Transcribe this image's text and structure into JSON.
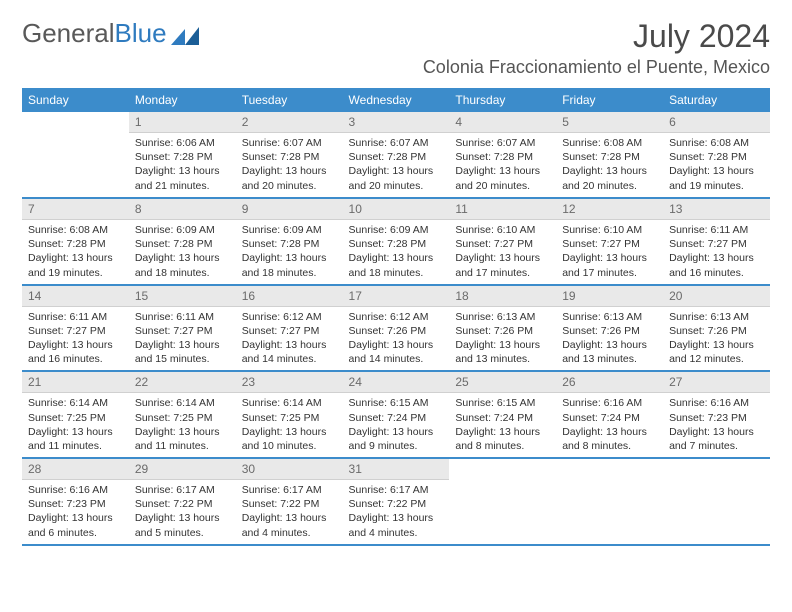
{
  "brand": {
    "part1": "General",
    "part2": "Blue"
  },
  "title": "July 2024",
  "location": "Colonia Fraccionamiento el Puente, Mexico",
  "colors": {
    "headerBar": "#3c8ccb",
    "headerText": "#ffffff",
    "dayNumBg": "#e9e9e9",
    "dayNumText": "#6b6b6b",
    "bodyText": "#333333",
    "brandGray": "#595959",
    "brandBlue": "#2f7bbf",
    "rowBorder": "#3c8ccb"
  },
  "dayHeaders": [
    "Sunday",
    "Monday",
    "Tuesday",
    "Wednesday",
    "Thursday",
    "Friday",
    "Saturday"
  ],
  "weeks": [
    [
      null,
      {
        "n": "1",
        "sunrise": "6:06 AM",
        "sunset": "7:28 PM",
        "daylight": "13 hours and 21 minutes."
      },
      {
        "n": "2",
        "sunrise": "6:07 AM",
        "sunset": "7:28 PM",
        "daylight": "13 hours and 20 minutes."
      },
      {
        "n": "3",
        "sunrise": "6:07 AM",
        "sunset": "7:28 PM",
        "daylight": "13 hours and 20 minutes."
      },
      {
        "n": "4",
        "sunrise": "6:07 AM",
        "sunset": "7:28 PM",
        "daylight": "13 hours and 20 minutes."
      },
      {
        "n": "5",
        "sunrise": "6:08 AM",
        "sunset": "7:28 PM",
        "daylight": "13 hours and 20 minutes."
      },
      {
        "n": "6",
        "sunrise": "6:08 AM",
        "sunset": "7:28 PM",
        "daylight": "13 hours and 19 minutes."
      }
    ],
    [
      {
        "n": "7",
        "sunrise": "6:08 AM",
        "sunset": "7:28 PM",
        "daylight": "13 hours and 19 minutes."
      },
      {
        "n": "8",
        "sunrise": "6:09 AM",
        "sunset": "7:28 PM",
        "daylight": "13 hours and 18 minutes."
      },
      {
        "n": "9",
        "sunrise": "6:09 AM",
        "sunset": "7:28 PM",
        "daylight": "13 hours and 18 minutes."
      },
      {
        "n": "10",
        "sunrise": "6:09 AM",
        "sunset": "7:28 PM",
        "daylight": "13 hours and 18 minutes."
      },
      {
        "n": "11",
        "sunrise": "6:10 AM",
        "sunset": "7:27 PM",
        "daylight": "13 hours and 17 minutes."
      },
      {
        "n": "12",
        "sunrise": "6:10 AM",
        "sunset": "7:27 PM",
        "daylight": "13 hours and 17 minutes."
      },
      {
        "n": "13",
        "sunrise": "6:11 AM",
        "sunset": "7:27 PM",
        "daylight": "13 hours and 16 minutes."
      }
    ],
    [
      {
        "n": "14",
        "sunrise": "6:11 AM",
        "sunset": "7:27 PM",
        "daylight": "13 hours and 16 minutes."
      },
      {
        "n": "15",
        "sunrise": "6:11 AM",
        "sunset": "7:27 PM",
        "daylight": "13 hours and 15 minutes."
      },
      {
        "n": "16",
        "sunrise": "6:12 AM",
        "sunset": "7:27 PM",
        "daylight": "13 hours and 14 minutes."
      },
      {
        "n": "17",
        "sunrise": "6:12 AM",
        "sunset": "7:26 PM",
        "daylight": "13 hours and 14 minutes."
      },
      {
        "n": "18",
        "sunrise": "6:13 AM",
        "sunset": "7:26 PM",
        "daylight": "13 hours and 13 minutes."
      },
      {
        "n": "19",
        "sunrise": "6:13 AM",
        "sunset": "7:26 PM",
        "daylight": "13 hours and 13 minutes."
      },
      {
        "n": "20",
        "sunrise": "6:13 AM",
        "sunset": "7:26 PM",
        "daylight": "13 hours and 12 minutes."
      }
    ],
    [
      {
        "n": "21",
        "sunrise": "6:14 AM",
        "sunset": "7:25 PM",
        "daylight": "13 hours and 11 minutes."
      },
      {
        "n": "22",
        "sunrise": "6:14 AM",
        "sunset": "7:25 PM",
        "daylight": "13 hours and 11 minutes."
      },
      {
        "n": "23",
        "sunrise": "6:14 AM",
        "sunset": "7:25 PM",
        "daylight": "13 hours and 10 minutes."
      },
      {
        "n": "24",
        "sunrise": "6:15 AM",
        "sunset": "7:24 PM",
        "daylight": "13 hours and 9 minutes."
      },
      {
        "n": "25",
        "sunrise": "6:15 AM",
        "sunset": "7:24 PM",
        "daylight": "13 hours and 8 minutes."
      },
      {
        "n": "26",
        "sunrise": "6:16 AM",
        "sunset": "7:24 PM",
        "daylight": "13 hours and 8 minutes."
      },
      {
        "n": "27",
        "sunrise": "6:16 AM",
        "sunset": "7:23 PM",
        "daylight": "13 hours and 7 minutes."
      }
    ],
    [
      {
        "n": "28",
        "sunrise": "6:16 AM",
        "sunset": "7:23 PM",
        "daylight": "13 hours and 6 minutes."
      },
      {
        "n": "29",
        "sunrise": "6:17 AM",
        "sunset": "7:22 PM",
        "daylight": "13 hours and 5 minutes."
      },
      {
        "n": "30",
        "sunrise": "6:17 AM",
        "sunset": "7:22 PM",
        "daylight": "13 hours and 4 minutes."
      },
      {
        "n": "31",
        "sunrise": "6:17 AM",
        "sunset": "7:22 PM",
        "daylight": "13 hours and 4 minutes."
      },
      null,
      null,
      null
    ]
  ],
  "labels": {
    "sunrise": "Sunrise:",
    "sunset": "Sunset:",
    "daylight": "Daylight:"
  }
}
